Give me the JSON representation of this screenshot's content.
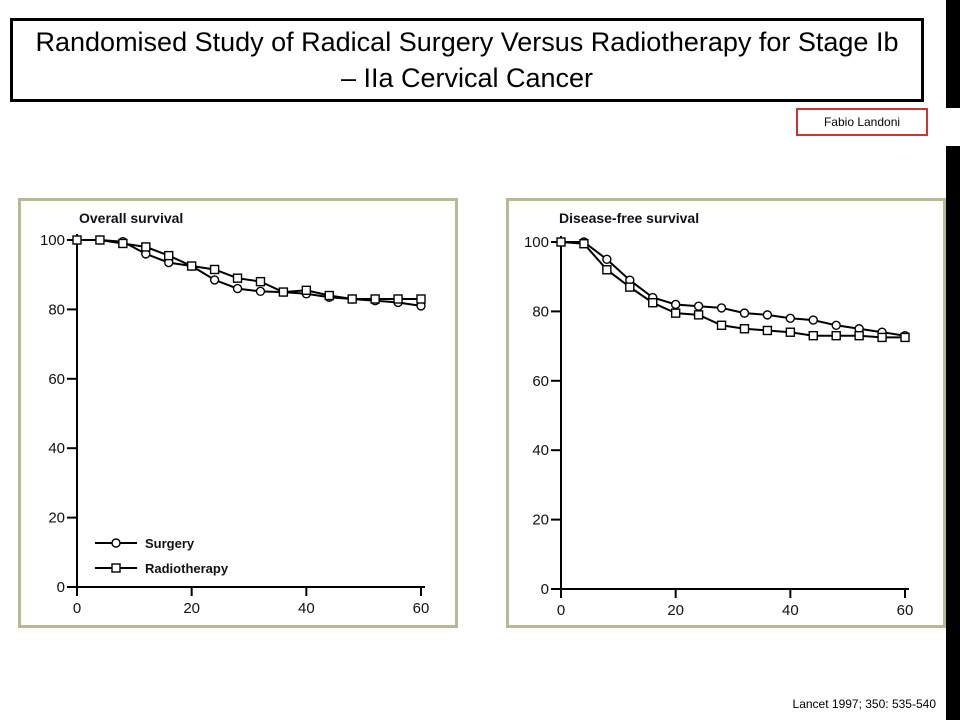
{
  "slide": {
    "title": "Randomised Study of Radical Surgery Versus Radiotherapy for Stage Ib – IIa Cervical Cancer",
    "author": "Fabio Landoni",
    "citation": "Lancet 1997; 350: 535-540"
  },
  "chart_data": [
    {
      "type": "line",
      "title": "Overall survival",
      "xlabel": "",
      "ylabel": "",
      "xlim": [
        0,
        60
      ],
      "ylim": [
        0,
        100
      ],
      "x_ticks": [
        0,
        20,
        40,
        60
      ],
      "y_ticks": [
        0,
        20,
        40,
        60,
        80,
        100
      ],
      "grid": false,
      "legend": {
        "placement": "bottom-left"
      },
      "series": [
        {
          "name": "Surgery",
          "marker": "circle",
          "x": [
            0,
            4,
            8,
            12,
            16,
            20,
            24,
            28,
            32,
            36,
            40,
            44,
            48,
            52,
            56,
            60
          ],
          "y": [
            100,
            100,
            99.5,
            96,
            93.5,
            92.5,
            88.5,
            86,
            85.2,
            85,
            84.5,
            83.5,
            83,
            82.5,
            82,
            81
          ]
        },
        {
          "name": "Radiotherapy",
          "marker": "square",
          "x": [
            0,
            4,
            8,
            12,
            16,
            20,
            24,
            28,
            32,
            36,
            40,
            44,
            48,
            52,
            56,
            60
          ],
          "y": [
            100,
            100,
            99,
            98,
            95.5,
            92.5,
            91.5,
            89,
            88,
            85,
            85.5,
            84,
            83,
            83,
            83,
            83
          ]
        }
      ]
    },
    {
      "type": "line",
      "title": "Disease-free survival",
      "xlabel": "",
      "ylabel": "",
      "xlim": [
        0,
        60
      ],
      "ylim": [
        0,
        100
      ],
      "x_ticks": [
        0,
        20,
        40,
        60
      ],
      "y_ticks": [
        0,
        20,
        40,
        60,
        80,
        100
      ],
      "grid": false,
      "series": [
        {
          "name": "Surgery",
          "marker": "circle",
          "x": [
            0,
            4,
            8,
            12,
            16,
            20,
            24,
            28,
            32,
            36,
            40,
            44,
            48,
            52,
            56,
            60
          ],
          "y": [
            100,
            100,
            95,
            89,
            84,
            82,
            81.5,
            81,
            79.5,
            79,
            78,
            77.5,
            76,
            75,
            74,
            73
          ]
        },
        {
          "name": "Radiotherapy",
          "marker": "square",
          "x": [
            0,
            4,
            8,
            12,
            16,
            20,
            24,
            28,
            32,
            36,
            40,
            44,
            48,
            52,
            56,
            60
          ],
          "y": [
            100,
            99.5,
            92,
            87,
            82.5,
            79.5,
            79,
            76,
            75,
            74.5,
            74,
            73,
            73,
            73,
            72.5,
            72.5
          ]
        }
      ]
    }
  ]
}
